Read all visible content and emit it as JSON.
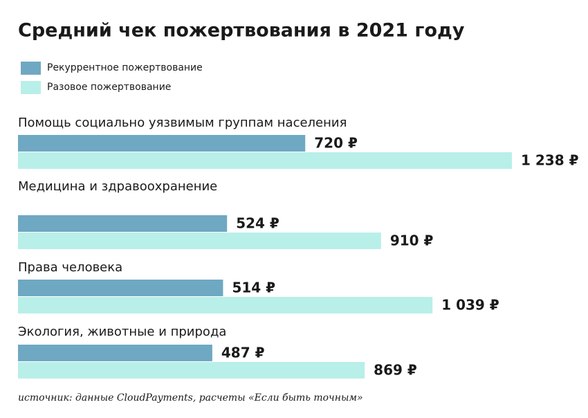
{
  "chart_data": {
    "type": "barh",
    "title": "Средний чек пожертвования в 2021 году",
    "categories": [
      "Помощь социально уязвимым группам населения",
      "Медицина и здравоохранение",
      "Права человека",
      "Экология, животные и природа"
    ],
    "series": [
      {
        "name": "Рекуррентное пожертвование",
        "color": "#6fa8c2",
        "values": [
          720,
          524,
          514,
          487
        ],
        "value_labels": [
          "720 ₽",
          "524 ₽",
          "514 ₽",
          "487 ₽"
        ]
      },
      {
        "name": "Разовое пожертвование",
        "color": "#b9efe9",
        "values": [
          1238,
          910,
          1039,
          869
        ],
        "value_labels": [
          "1 238 ₽",
          "910 ₽",
          "1 039 ₽",
          "869 ₽"
        ]
      }
    ],
    "source": "источник: данные CloudPayments, расчеты «Если быть точным»"
  }
}
